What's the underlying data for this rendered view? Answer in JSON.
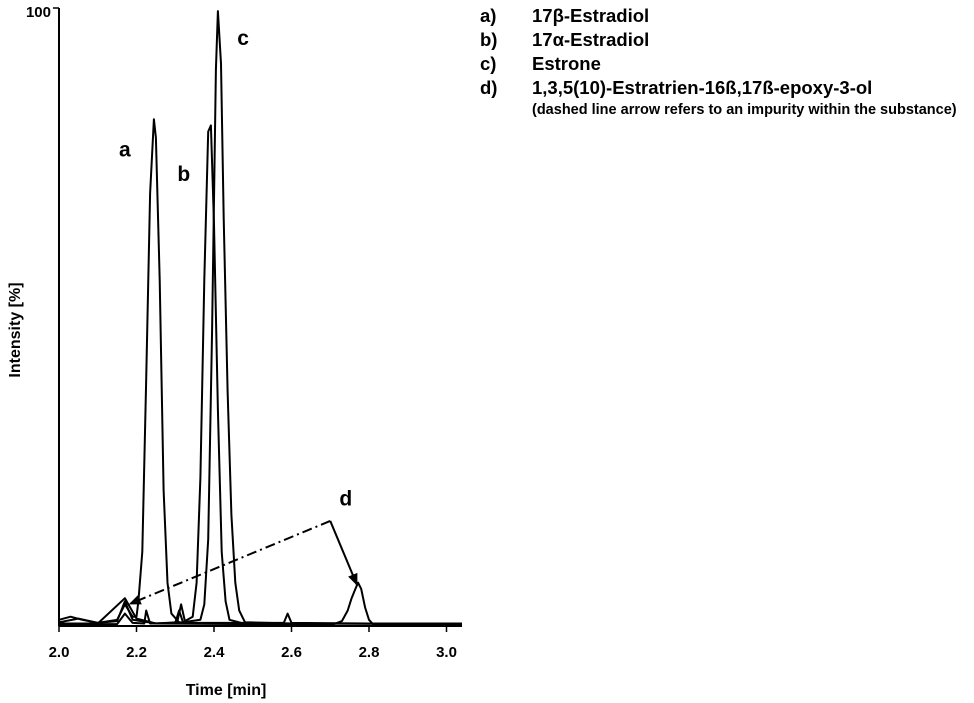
{
  "chart_data": {
    "type": "line",
    "title": "",
    "xlabel": "Time [min]",
    "ylabel": "Intensity  [%]",
    "xlim": [
      2.0,
      3.04
    ],
    "ylim": [
      0,
      100
    ],
    "x_ticks": [
      "2.0",
      "2.2",
      "2.4",
      "2.6",
      "2.8",
      "3.0"
    ],
    "x_tick_values": [
      2.0,
      2.2,
      2.4,
      2.6,
      2.8,
      3.0
    ],
    "y_tick_labels": [
      "100"
    ],
    "grid": false,
    "series": [
      {
        "points": [
          [
            2.0,
            1.0
          ],
          [
            2.03,
            1.5
          ],
          [
            2.06,
            1.0
          ],
          [
            2.1,
            0.5
          ],
          [
            2.15,
            1.0
          ],
          [
            2.17,
            3.5
          ],
          [
            2.19,
            1.5
          ],
          [
            2.2,
            1.5
          ],
          [
            2.205,
            4
          ],
          [
            2.215,
            12
          ],
          [
            2.225,
            40
          ],
          [
            2.235,
            70
          ],
          [
            2.245,
            82
          ],
          [
            2.25,
            79
          ],
          [
            2.26,
            56
          ],
          [
            2.27,
            22
          ],
          [
            2.28,
            7
          ],
          [
            2.29,
            2
          ],
          [
            2.31,
            0.6
          ],
          [
            2.35,
            0.5
          ],
          [
            2.45,
            0.5
          ],
          [
            2.6,
            0.4
          ],
          [
            2.8,
            0.4
          ],
          [
            3.04,
            0.4
          ]
        ]
      },
      {
        "points": [
          [
            2.0,
            0.4
          ],
          [
            2.1,
            0.4
          ],
          [
            2.17,
            4.5
          ],
          [
            2.2,
            1.2
          ],
          [
            2.25,
            0.4
          ],
          [
            2.305,
            0.6
          ],
          [
            2.315,
            3.5
          ],
          [
            2.325,
            0.8
          ],
          [
            2.345,
            1.5
          ],
          [
            2.355,
            7
          ],
          [
            2.365,
            24
          ],
          [
            2.375,
            56
          ],
          [
            2.385,
            80
          ],
          [
            2.392,
            81
          ],
          [
            2.4,
            65
          ],
          [
            2.41,
            35
          ],
          [
            2.42,
            12
          ],
          [
            2.43,
            4
          ],
          [
            2.44,
            1
          ],
          [
            2.47,
            0.5
          ],
          [
            2.58,
            0.5
          ],
          [
            2.59,
            2
          ],
          [
            2.6,
            0.5
          ],
          [
            2.8,
            0.4
          ],
          [
            3.04,
            0.4
          ]
        ]
      },
      {
        "points": [
          [
            2.0,
            0.3
          ],
          [
            2.15,
            0.3
          ],
          [
            2.17,
            2
          ],
          [
            2.19,
            0.5
          ],
          [
            2.22,
            0.4
          ],
          [
            2.225,
            2.5
          ],
          [
            2.235,
            0.4
          ],
          [
            2.3,
            0.5
          ],
          [
            2.31,
            2.5
          ],
          [
            2.32,
            0.6
          ],
          [
            2.365,
            1
          ],
          [
            2.375,
            3.5
          ],
          [
            2.385,
            14
          ],
          [
            2.395,
            48
          ],
          [
            2.405,
            90
          ],
          [
            2.41,
            99.5
          ],
          [
            2.418,
            91
          ],
          [
            2.425,
            66
          ],
          [
            2.435,
            38
          ],
          [
            2.445,
            18
          ],
          [
            2.455,
            7
          ],
          [
            2.465,
            2.5
          ],
          [
            2.48,
            0.6
          ],
          [
            2.6,
            0.4
          ],
          [
            3.04,
            0.3
          ]
        ]
      },
      {
        "points": [
          [
            2.0,
            0.6
          ],
          [
            2.05,
            1.2
          ],
          [
            2.1,
            0.5
          ],
          [
            2.15,
            0.8
          ],
          [
            2.17,
            4
          ],
          [
            2.19,
            1
          ],
          [
            2.25,
            0.4
          ],
          [
            2.5,
            0.3
          ],
          [
            2.71,
            0.3
          ],
          [
            2.73,
            0.8
          ],
          [
            2.745,
            2.5
          ],
          [
            2.755,
            4.5
          ],
          [
            2.765,
            6
          ],
          [
            2.772,
            7
          ],
          [
            2.78,
            6
          ],
          [
            2.79,
            3
          ],
          [
            2.8,
            1
          ],
          [
            2.81,
            0.3
          ],
          [
            3.04,
            0.3
          ]
        ]
      }
    ],
    "peak_labels": [
      {
        "text": "a",
        "x": 2.17,
        "y": 76
      },
      {
        "text": "b",
        "x": 2.322,
        "y": 72
      },
      {
        "text": "c",
        "x": 2.475,
        "y": 94
      },
      {
        "text": "d",
        "x": 2.74,
        "y": 19.5
      }
    ],
    "annotations": {
      "dashed_arrow": {
        "from": [
          2.7,
          17
        ],
        "to": [
          2.18,
          3.5
        ]
      },
      "solid_arrow": {
        "from": [
          2.7,
          17
        ],
        "to": [
          2.77,
          6.5
        ]
      }
    },
    "legend": {
      "placement": "top-right",
      "items": [
        {
          "key": "a)",
          "text": "17β-Estradiol"
        },
        {
          "key": "b)",
          "text": "17α-Estradiol"
        },
        {
          "key": "c)",
          "text": "Estrone"
        },
        {
          "key": "d)",
          "text": "1,3,5(10)-Estratrien-16ß,17ß-epoxy-3-ol"
        }
      ],
      "note": "(dashed line arrow refers to an impurity within the substance)"
    }
  }
}
